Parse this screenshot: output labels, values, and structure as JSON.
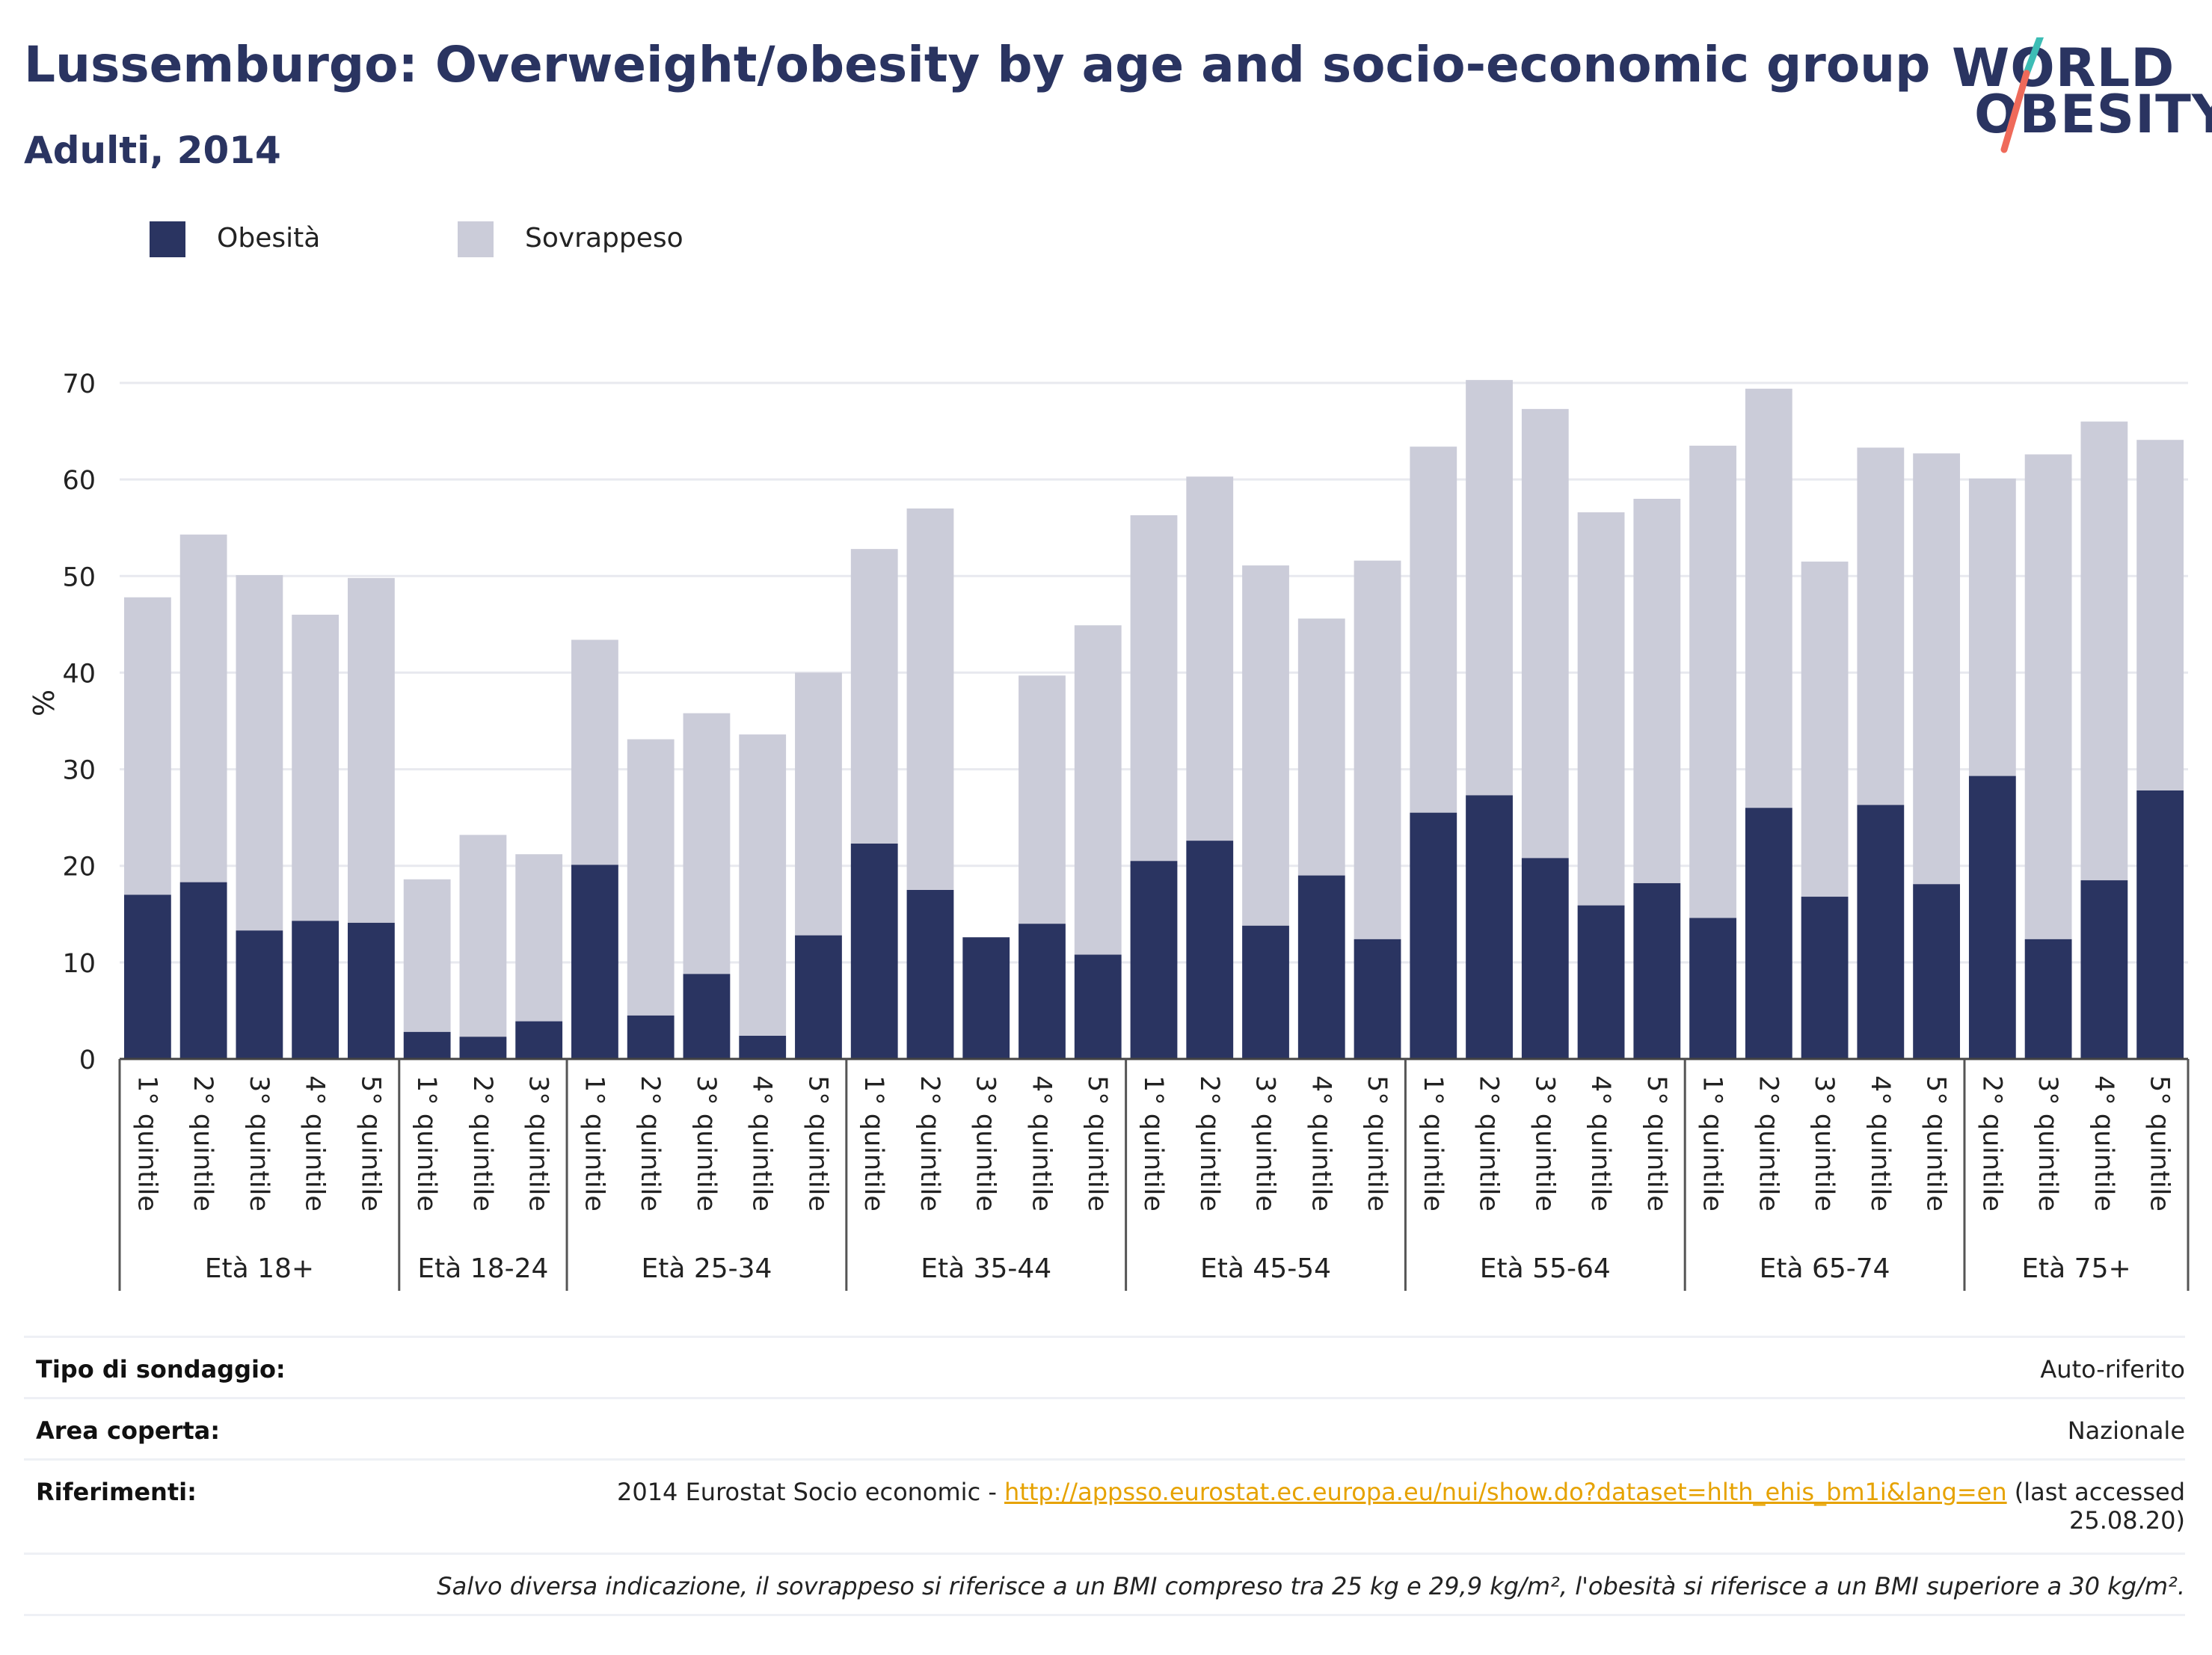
{
  "header": {
    "title": "Lussemburgo: Overweight/obesity by age and socio-economic group",
    "subtitle": "Adulti, 2014"
  },
  "logo": {
    "line1": "WORLD",
    "line2": "OBESITY"
  },
  "colors": {
    "obesity": "#2a3461",
    "overweight": "#cbccd9",
    "title": "#2a3461",
    "link": "#e6a200"
  },
  "chart_data": {
    "type": "bar",
    "stacked": true,
    "ylabel": "%",
    "ylim": [
      0,
      70
    ],
    "yticks": [
      0,
      10,
      20,
      30,
      40,
      50,
      60,
      70
    ],
    "grid": true,
    "legend_position": "top-left",
    "groups": [
      {
        "label": "Età 18+",
        "categories": [
          "1° quintile",
          "2° quintile",
          "3° quintile",
          "4° quintile",
          "5° quintile"
        ]
      },
      {
        "label": "Età 18-24",
        "categories": [
          "1° quintile",
          "2° quintile",
          "3° quintile"
        ]
      },
      {
        "label": "Età 25-34",
        "categories": [
          "1° quintile",
          "2° quintile",
          "3° quintile",
          "4° quintile",
          "5° quintile"
        ]
      },
      {
        "label": "Età 35-44",
        "categories": [
          "1° quintile",
          "2° quintile",
          "3° quintile",
          "4° quintile",
          "5° quintile"
        ]
      },
      {
        "label": "Età 45-54",
        "categories": [
          "1° quintile",
          "2° quintile",
          "3° quintile",
          "4° quintile",
          "5° quintile"
        ]
      },
      {
        "label": "Età 55-64",
        "categories": [
          "1° quintile",
          "2° quintile",
          "3° quintile",
          "4° quintile",
          "5° quintile"
        ]
      },
      {
        "label": "Età 65-74",
        "categories": [
          "1° quintile",
          "2° quintile",
          "3° quintile",
          "4° quintile",
          "5° quintile"
        ]
      },
      {
        "label": "Età 75+",
        "categories": [
          "2° quintile",
          "3° quintile",
          "4° quintile",
          "5° quintile"
        ]
      }
    ],
    "series": [
      {
        "name": "Obesità",
        "values": [
          17.0,
          18.3,
          13.3,
          14.3,
          14.1,
          2.8,
          2.3,
          3.9,
          20.1,
          4.5,
          8.8,
          2.4,
          12.8,
          22.3,
          17.5,
          12.6,
          14.0,
          10.8,
          20.5,
          22.6,
          13.8,
          19.0,
          12.4,
          25.5,
          27.3,
          20.8,
          15.9,
          18.2,
          14.6,
          26.0,
          16.8,
          26.3,
          18.1,
          29.3,
          12.4,
          18.5,
          27.8
        ]
      },
      {
        "name": "Sovrappeso",
        "values": [
          30.8,
          36.0,
          36.8,
          31.7,
          35.7,
          15.8,
          20.9,
          17.3,
          23.3,
          28.6,
          27.0,
          31.2,
          27.2,
          30.5,
          39.5,
          0,
          25.7,
          34.1,
          35.8,
          37.7,
          37.3,
          26.6,
          39.2,
          37.9,
          43.0,
          46.5,
          40.7,
          39.8,
          48.9,
          43.4,
          34.7,
          37.0,
          44.6,
          30.8,
          50.2,
          47.5,
          36.3
        ]
      }
    ]
  },
  "info": {
    "survey_type_label": "Tipo di sondaggio:",
    "survey_type_value": "Auto-riferito",
    "area_label": "Area coperta:",
    "area_value": "Nazionale",
    "references_label": "Riferimenti:",
    "references_prefix": "2014 Eurostat Socio economic - ",
    "references_link": "http://appsso.eurostat.ec.europa.eu/nui/show.do?dataset=hlth_ehis_bm1i&lang=en",
    "references_suffix": " (last accessed",
    "references_line2": "25.08.20)",
    "note": "Salvo diversa indicazione, il sovrappeso si riferisce a un BMI compreso tra 25 kg e 29,9 kg/m², l'obesità si riferisce a un BMI superiore a 30 kg/m²."
  }
}
